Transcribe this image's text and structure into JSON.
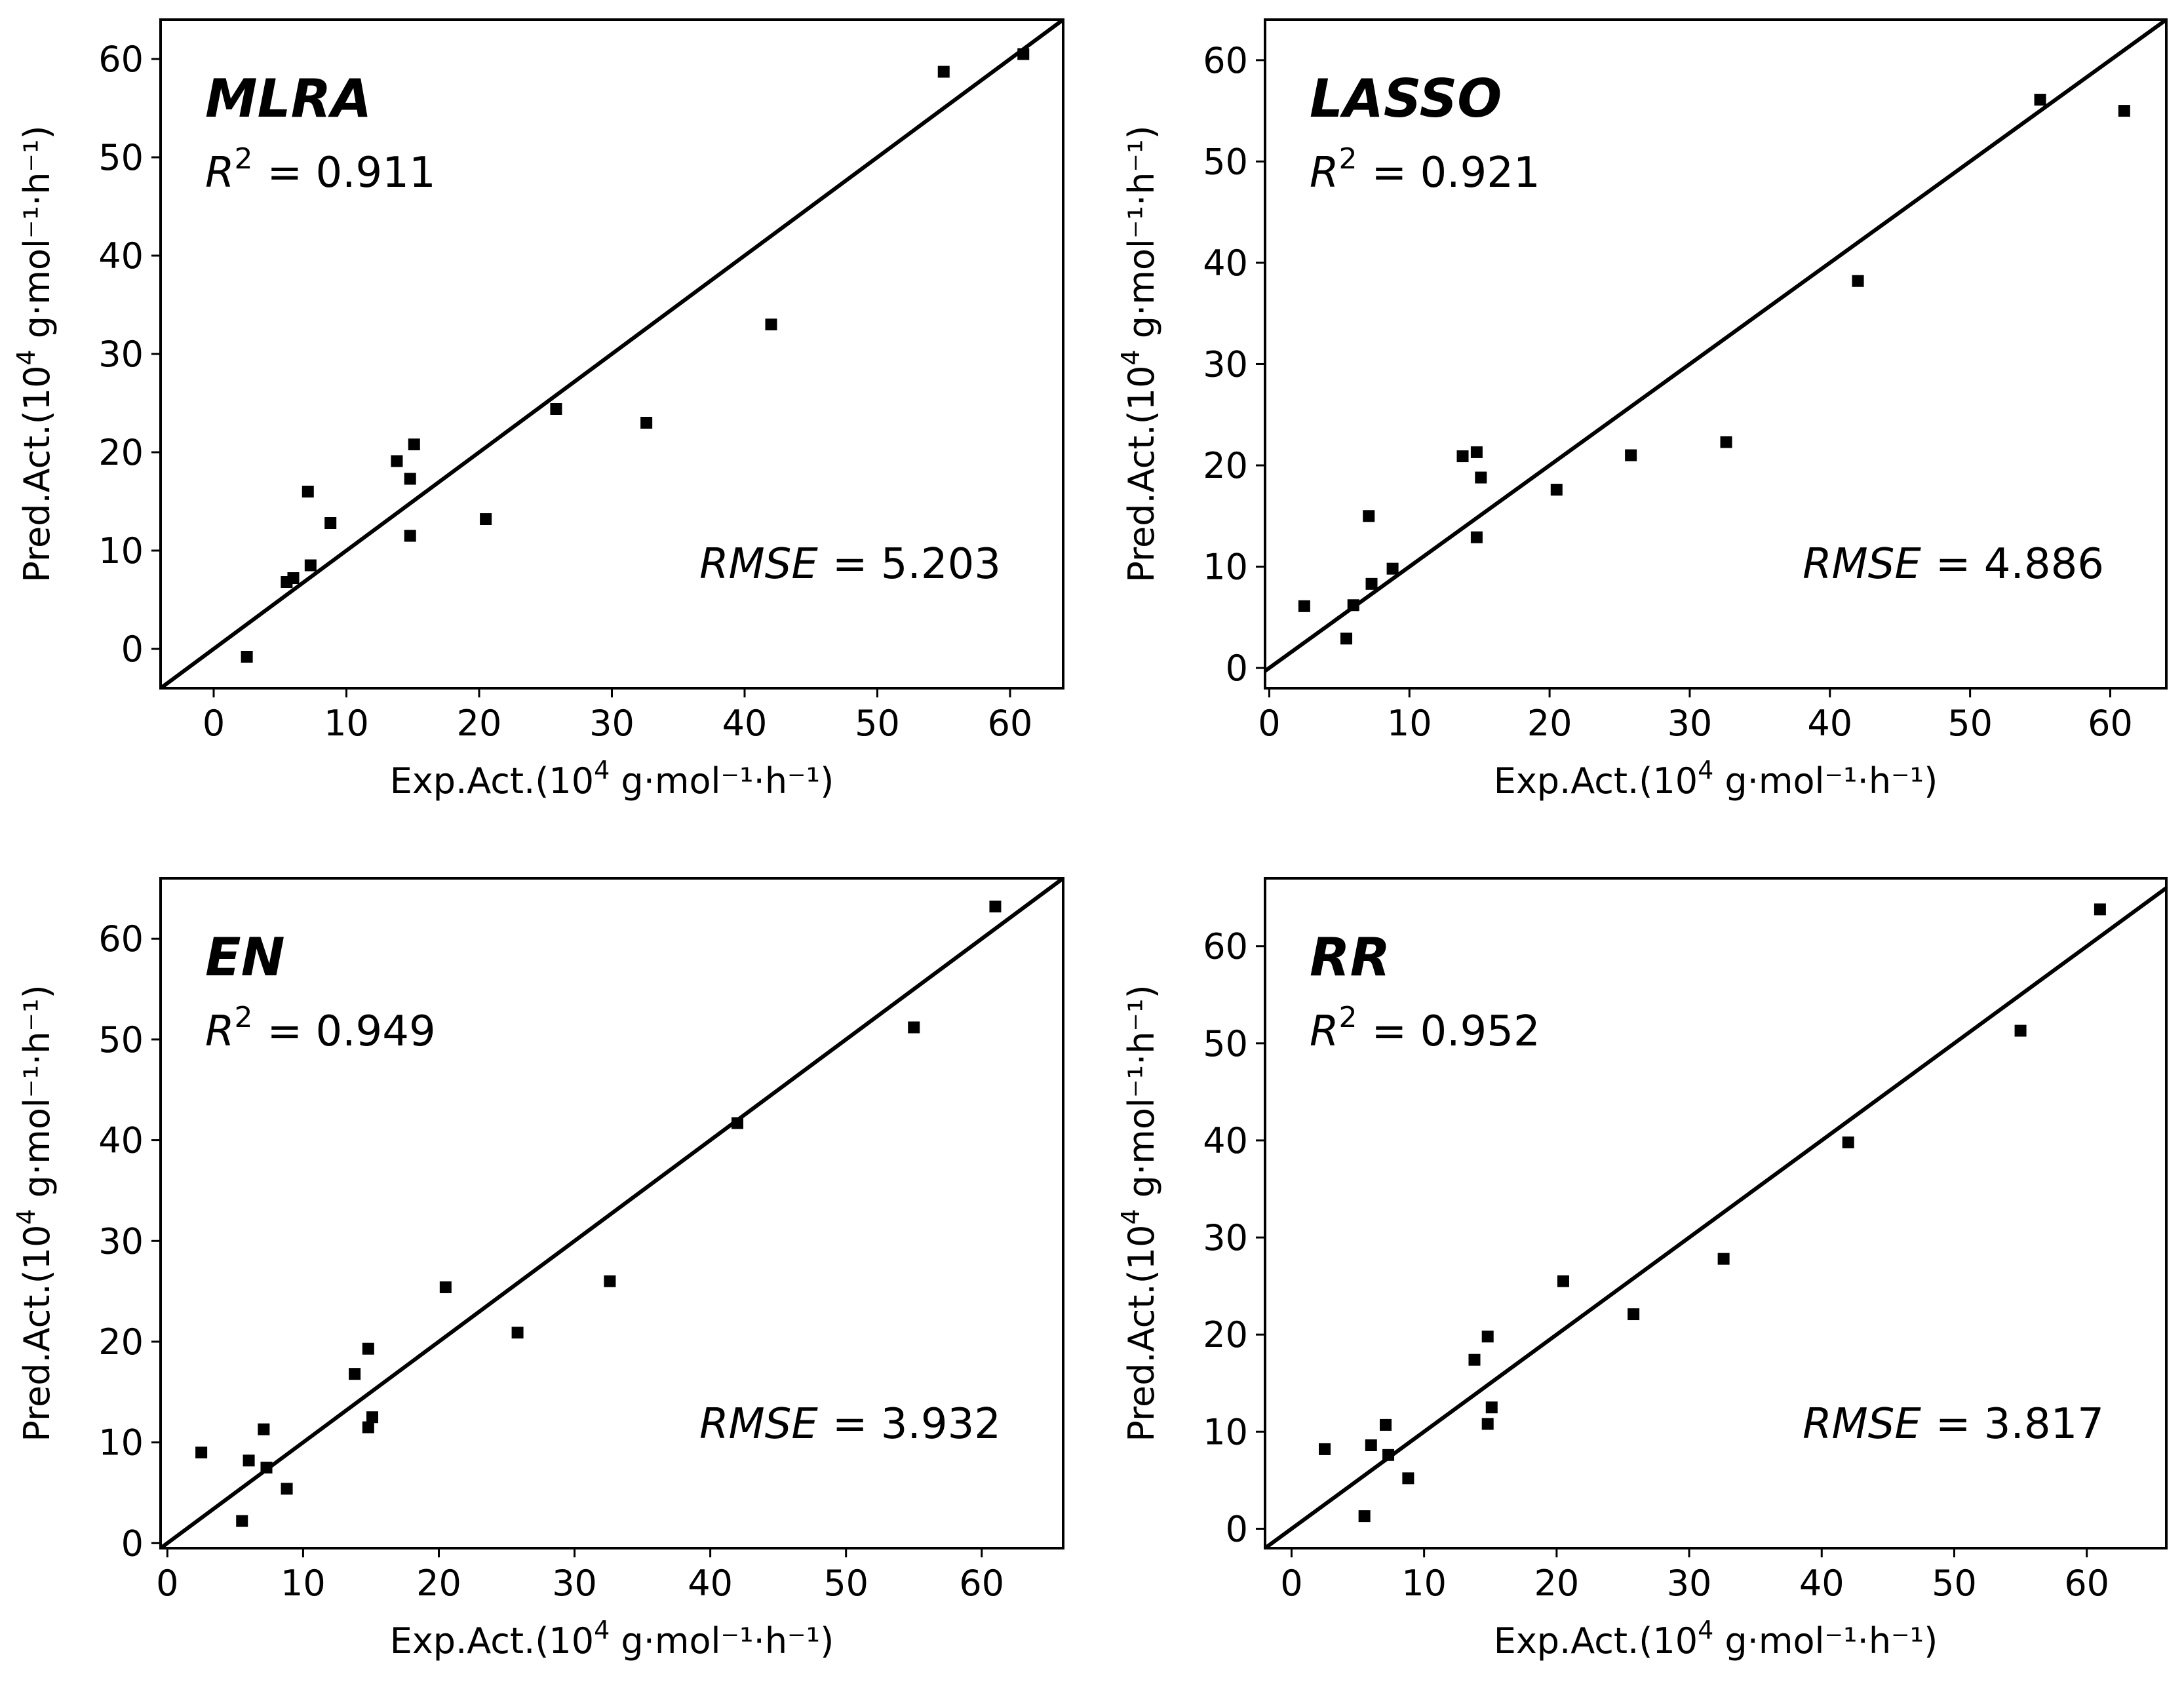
{
  "chart_data": [
    {
      "type": "scatter",
      "panel": "top-left",
      "title": "MLRA",
      "r2_label": "R",
      "r2_sup": "2",
      "r2_value": "= 0.911",
      "rmse_label": "RMSE",
      "rmse_value": "= 5.203",
      "xlabel": "Exp.Act.(10",
      "xlabel_sup": "4",
      "xlabel_tail": " g·mol⁻¹·h⁻¹)",
      "ylabel": "Pred.Act.(10",
      "ylabel_sup": "4",
      "ylabel_tail": " g·mol⁻¹·h⁻¹)",
      "xlim": [
        -4,
        64
      ],
      "ylim": [
        -4,
        64
      ],
      "xticks": [
        0,
        10,
        20,
        30,
        40,
        50,
        60
      ],
      "yticks": [
        0,
        10,
        20,
        30,
        40,
        50,
        60
      ],
      "reference_line": "y = x",
      "points": [
        [
          2.5,
          -0.8
        ],
        [
          5.5,
          6.8
        ],
        [
          6.0,
          7.2
        ],
        [
          7.1,
          16.0
        ],
        [
          7.3,
          8.5
        ],
        [
          8.8,
          12.8
        ],
        [
          13.8,
          19.1
        ],
        [
          14.8,
          17.3
        ],
        [
          14.8,
          11.5
        ],
        [
          15.1,
          20.8
        ],
        [
          20.5,
          13.2
        ],
        [
          25.8,
          24.4
        ],
        [
          32.6,
          23.0
        ],
        [
          42.0,
          33.0
        ],
        [
          55.0,
          58.7
        ],
        [
          61.0,
          60.5
        ]
      ]
    },
    {
      "type": "scatter",
      "panel": "top-right",
      "title": "LASSO",
      "r2_label": "R",
      "r2_sup": "2",
      "r2_value": "= 0.921",
      "rmse_label": "RMSE",
      "rmse_value": "= 4.886",
      "xlabel": "Exp.Act.(10",
      "xlabel_sup": "4",
      "xlabel_tail": " g·mol⁻¹·h⁻¹)",
      "ylabel": "Pred.Act.(10",
      "ylabel_sup": "4",
      "ylabel_tail": " g·mol⁻¹·h⁻¹)",
      "xlim": [
        -0.3,
        64
      ],
      "ylim": [
        -2,
        64
      ],
      "xticks": [
        0,
        10,
        20,
        30,
        40,
        50,
        60
      ],
      "yticks": [
        0,
        10,
        20,
        30,
        40,
        50,
        60
      ],
      "reference_line": "y = x",
      "points": [
        [
          2.5,
          6.1
        ],
        [
          5.5,
          2.9
        ],
        [
          6.0,
          6.2
        ],
        [
          7.1,
          15.0
        ],
        [
          7.3,
          8.3
        ],
        [
          8.8,
          9.8
        ],
        [
          13.8,
          20.9
        ],
        [
          14.8,
          21.3
        ],
        [
          14.8,
          12.9
        ],
        [
          15.1,
          18.8
        ],
        [
          20.5,
          17.6
        ],
        [
          25.8,
          21.0
        ],
        [
          32.6,
          22.3
        ],
        [
          42.0,
          38.2
        ],
        [
          55.0,
          56.1
        ],
        [
          61.0,
          55.0
        ]
      ]
    },
    {
      "type": "scatter",
      "panel": "bottom-left",
      "title": "EN",
      "r2_label": "R",
      "r2_sup": "2",
      "r2_value": "= 0.949",
      "rmse_label": "RMSE",
      "rmse_value": "= 3.932",
      "xlabel": "Exp.Act.(10",
      "xlabel_sup": "4",
      "xlabel_tail": " g·mol⁻¹·h⁻¹)",
      "ylabel": "Pred.Act.(10",
      "ylabel_sup": "4",
      "ylabel_tail": " g·mol⁻¹·h⁻¹)",
      "xlim": [
        -0.5,
        66
      ],
      "ylim": [
        -0.5,
        66
      ],
      "xticks": [
        0,
        10,
        20,
        30,
        40,
        50,
        60
      ],
      "yticks": [
        0,
        10,
        20,
        30,
        40,
        50,
        60
      ],
      "reference_line": "y = x",
      "points": [
        [
          2.5,
          9.0
        ],
        [
          5.5,
          2.2
        ],
        [
          6.0,
          8.2
        ],
        [
          7.1,
          11.3
        ],
        [
          7.3,
          7.5
        ],
        [
          8.8,
          5.4
        ],
        [
          13.8,
          16.8
        ],
        [
          14.8,
          19.3
        ],
        [
          14.8,
          11.5
        ],
        [
          15.1,
          12.5
        ],
        [
          20.5,
          25.4
        ],
        [
          25.8,
          20.9
        ],
        [
          32.6,
          26.0
        ],
        [
          42.0,
          41.7
        ],
        [
          55.0,
          51.2
        ],
        [
          61.0,
          63.2
        ]
      ]
    },
    {
      "type": "scatter",
      "panel": "bottom-right",
      "title": "RR",
      "r2_label": "R",
      "r2_sup": "2",
      "r2_value": "= 0.952",
      "rmse_label": "RMSE",
      "rmse_value": "= 3.817",
      "xlabel": "Exp.Act.(10",
      "xlabel_sup": "4",
      "xlabel_tail": " g·mol⁻¹·h⁻¹)",
      "ylabel": "Pred.Act.(10",
      "ylabel_sup": "4",
      "ylabel_tail": " g·mol⁻¹·h⁻¹)",
      "xlim": [
        -2,
        66
      ],
      "ylim": [
        -2,
        67
      ],
      "xticks": [
        0,
        10,
        20,
        30,
        40,
        50,
        60
      ],
      "yticks": [
        0,
        10,
        20,
        30,
        40,
        50,
        60
      ],
      "reference_line": "y = x",
      "points": [
        [
          2.5,
          8.2
        ],
        [
          5.5,
          1.3
        ],
        [
          6.0,
          8.6
        ],
        [
          7.1,
          10.7
        ],
        [
          7.3,
          7.6
        ],
        [
          8.8,
          5.2
        ],
        [
          13.8,
          17.4
        ],
        [
          14.8,
          19.8
        ],
        [
          14.8,
          10.8
        ],
        [
          15.1,
          12.5
        ],
        [
          20.5,
          25.5
        ],
        [
          25.8,
          22.1
        ],
        [
          32.6,
          27.8
        ],
        [
          42.0,
          39.8
        ],
        [
          55.0,
          51.3
        ],
        [
          61.0,
          63.8
        ]
      ]
    }
  ]
}
